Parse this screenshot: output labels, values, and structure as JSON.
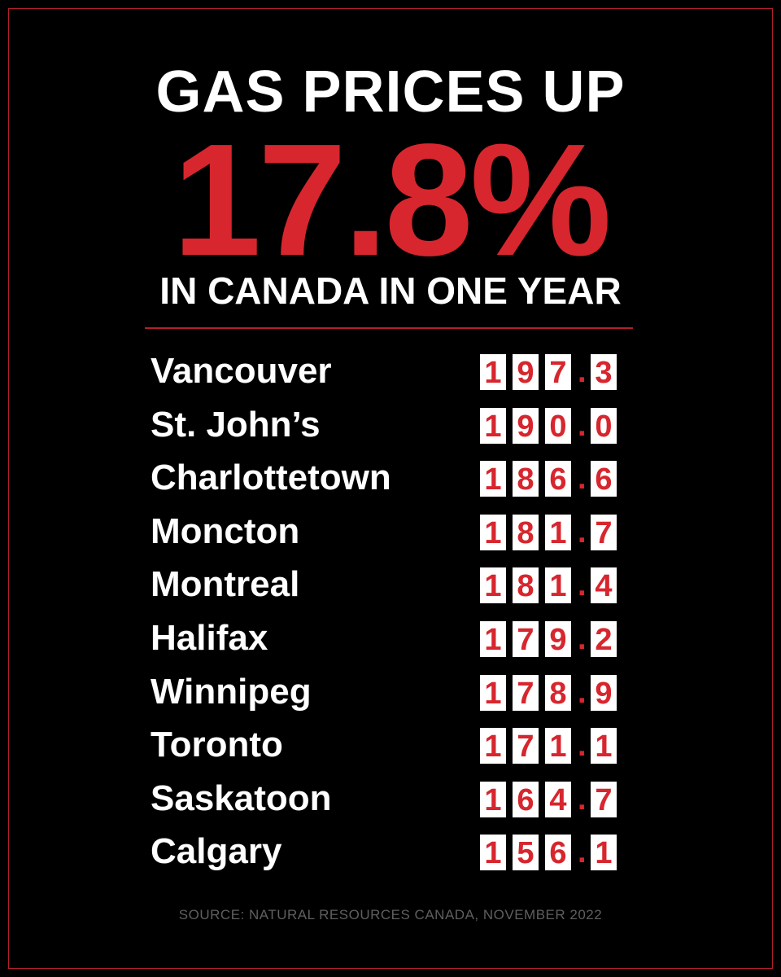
{
  "header": {
    "line1": "GAS PRICES UP",
    "headline": "17.8%",
    "line2": "IN CANADA IN ONE YEAR"
  },
  "table": {
    "rows": [
      {
        "city": "Vancouver",
        "price": "197.3"
      },
      {
        "city": "St. John’s",
        "price": "190.0"
      },
      {
        "city": "Charlottetown",
        "price": "186.6"
      },
      {
        "city": "Moncton",
        "price": "181.7"
      },
      {
        "city": "Montreal",
        "price": "181.4"
      },
      {
        "city": "Halifax",
        "price": "179.2"
      },
      {
        "city": "Winnipeg",
        "price": "178.9"
      },
      {
        "city": "Toronto",
        "price": "171.1"
      },
      {
        "city": "Saskatoon",
        "price": "164.7"
      },
      {
        "city": "Calgary",
        "price": "156.1"
      }
    ]
  },
  "footer": {
    "source": "SOURCE: NATURAL RESOURCES CANADA, NOVEMBER 2022"
  }
}
